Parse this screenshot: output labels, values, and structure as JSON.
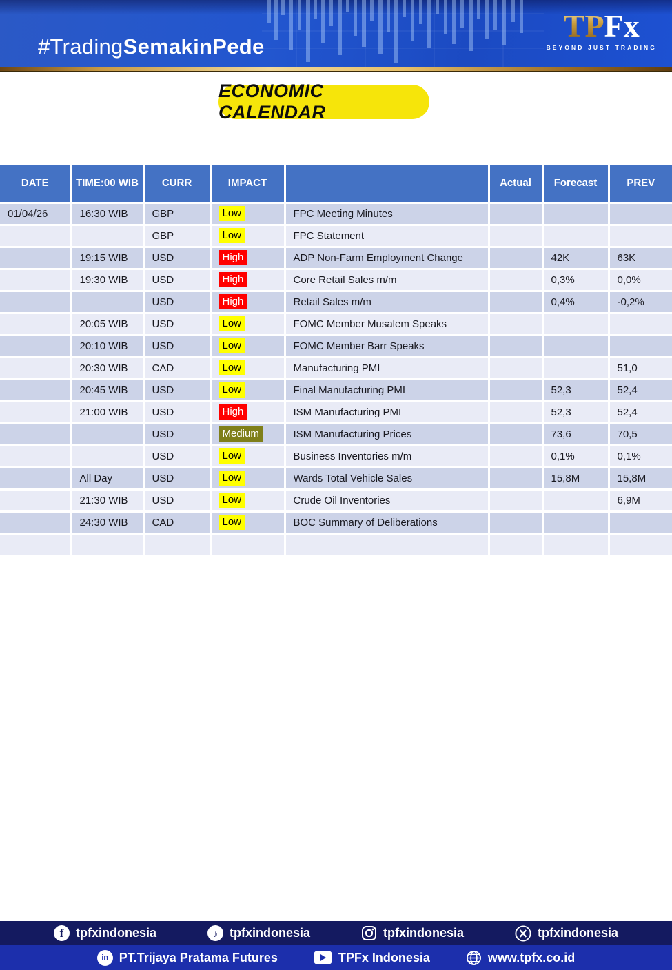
{
  "banner": {
    "hashtag_light": "#Trading",
    "hashtag_bold": "SemakinPede",
    "logo_tp": "TP",
    "logo_fx": "Fx",
    "logo_tagline": "BEYOND JUST TRADING"
  },
  "title": "ECONOMIC CALENDAR",
  "table": {
    "headers": [
      "DATE",
      "TIME:00 WIB",
      "CURR",
      "IMPACT",
      "",
      "Actual",
      "Forecast",
      "PREV"
    ],
    "rows": [
      {
        "date": "01/04/26",
        "time": "16:30 WIB",
        "curr": "GBP",
        "impact": "Low",
        "event": "FPC Meeting Minutes",
        "actual": "",
        "forecast": "",
        "prev": ""
      },
      {
        "date": "",
        "time": "",
        "curr": "GBP",
        "impact": "Low",
        "event": "FPC Statement",
        "actual": "",
        "forecast": "",
        "prev": ""
      },
      {
        "date": "",
        "time": "19:15 WIB",
        "curr": "USD",
        "impact": "High",
        "event": "ADP Non-Farm Employment Change",
        "actual": "",
        "forecast": "42K",
        "prev": "63K"
      },
      {
        "date": "",
        "time": "19:30 WIB",
        "curr": "USD",
        "impact": "High",
        "event": "Core Retail Sales m/m",
        "actual": "",
        "forecast": "0,3%",
        "prev": "0,0%"
      },
      {
        "date": "",
        "time": "",
        "curr": "USD",
        "impact": "High",
        "event": "Retail Sales m/m",
        "actual": "",
        "forecast": "0,4%",
        "prev": "-0,2%"
      },
      {
        "date": "",
        "time": "20:05 WIB",
        "curr": "USD",
        "impact": "Low",
        "event": "FOMC Member Musalem Speaks",
        "actual": "",
        "forecast": "",
        "prev": ""
      },
      {
        "date": "",
        "time": "20:10 WIB",
        "curr": "USD",
        "impact": "Low",
        "event": "FOMC Member Barr Speaks",
        "actual": "",
        "forecast": "",
        "prev": ""
      },
      {
        "date": "",
        "time": "20:30 WIB",
        "curr": "CAD",
        "impact": "Low",
        "event": "Manufacturing PMI",
        "actual": "",
        "forecast": "",
        "prev": "51,0"
      },
      {
        "date": "",
        "time": "20:45 WIB",
        "curr": "USD",
        "impact": "Low",
        "event": "Final Manufacturing PMI",
        "actual": "",
        "forecast": "52,3",
        "prev": "52,4"
      },
      {
        "date": "",
        "time": "21:00 WIB",
        "curr": "USD",
        "impact": "High",
        "event": "ISM Manufacturing PMI",
        "actual": "",
        "forecast": "52,3",
        "prev": "52,4"
      },
      {
        "date": "",
        "time": "",
        "curr": "USD",
        "impact": "Medium",
        "event": "ISM Manufacturing Prices",
        "actual": "",
        "forecast": "73,6",
        "prev": "70,5"
      },
      {
        "date": "",
        "time": "",
        "curr": "USD",
        "impact": "Low",
        "event": "Business Inventories m/m",
        "actual": "",
        "forecast": "0,1%",
        "prev": "0,1%"
      },
      {
        "date": "",
        "time": "All Day",
        "curr": "USD",
        "impact": "Low",
        "event": "Wards Total Vehicle Sales",
        "actual": "",
        "forecast": "15,8M",
        "prev": "15,8M"
      },
      {
        "date": "",
        "time": "21:30 WIB",
        "curr": "USD",
        "impact": "Low",
        "event": "Crude Oil Inventories",
        "actual": "",
        "forecast": "",
        "prev": "6,9M"
      },
      {
        "date": "",
        "time": "24:30 WIB",
        "curr": "CAD",
        "impact": "Low",
        "event": "BOC Summary of Deliberations",
        "actual": "",
        "forecast": "",
        "prev": ""
      },
      {
        "date": "",
        "time": "",
        "curr": "",
        "impact": "",
        "event": "",
        "actual": "",
        "forecast": "",
        "prev": ""
      }
    ]
  },
  "impact_colors": {
    "Low": {
      "bg": "#ffff00",
      "fg": "#000000"
    },
    "High": {
      "bg": "#ff0000",
      "fg": "#ffffff"
    },
    "Medium": {
      "bg": "#7f7f19",
      "fg": "#ffffff"
    }
  },
  "colors": {
    "header_blue": "#4472c4",
    "row_dark": "#ccd3e8",
    "row_light": "#e9ebf6",
    "footer_navy": "#141a60",
    "footer_blue": "#1c2fac",
    "pill_yellow": "#f6e50a"
  },
  "footer": {
    "row1": [
      {
        "icon": "facebook",
        "label": "tpfxindonesia"
      },
      {
        "icon": "tiktok",
        "label": "tpfxindonesia"
      },
      {
        "icon": "instagram",
        "label": "tpfxindonesia"
      },
      {
        "icon": "x",
        "label": "tpfxindonesia"
      }
    ],
    "row2": [
      {
        "icon": "linkedin",
        "label": "PT.Trijaya Pratama Futures"
      },
      {
        "icon": "youtube",
        "label": "TPFx Indonesia"
      },
      {
        "icon": "globe",
        "label": "www.tpfx.co.id"
      }
    ]
  }
}
